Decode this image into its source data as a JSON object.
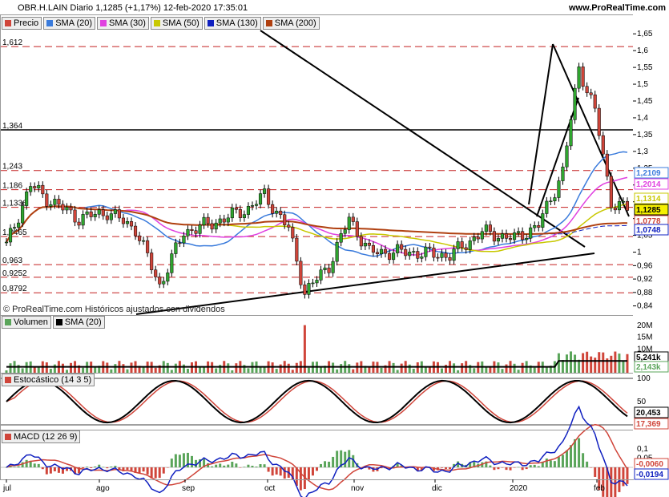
{
  "header": {
    "title": "OBR.H.LAIN Diario 1,1285 (+1,17%) 12-feb-2020 17:35:01",
    "site": "www.ProRealTime.com"
  },
  "price_legend": [
    {
      "label": "Precio",
      "color": "#d0453a"
    },
    {
      "label": "SMA (20)",
      "color": "#3a7bdc"
    },
    {
      "label": "SMA (30)",
      "color": "#e040e0"
    },
    {
      "label": "SMA (50)",
      "color": "#c8c800"
    },
    {
      "label": "SMA (130)",
      "color": "#1020c0"
    },
    {
      "label": "SMA (200)",
      "color": "#b04010"
    }
  ],
  "volume_legend": [
    {
      "label": "Volumen",
      "color": "#5aa55a"
    },
    {
      "label": "SMA (20)",
      "color": "#000000"
    }
  ],
  "stoch_legend": [
    {
      "label": "Estocástico (14 3 5)",
      "color": "#d0453a"
    }
  ],
  "macd_legend": [
    {
      "label": "MACD (12 26 9)",
      "color": "#d0453a"
    }
  ],
  "watermark": "© ProRealTime.com  Históricos ajustados con dividendos",
  "chart_data": {
    "type": "candlestick",
    "x_labels": [
      "jul",
      "ago",
      "sep",
      "oct",
      "nov",
      "dic",
      "2020",
      "feb"
    ],
    "price_axis": [
      "1,65",
      "1,6",
      "1,55",
      "1,5",
      "1,45",
      "1,4",
      "1,35",
      "1,3",
      "1,25",
      "1,2",
      "1,15",
      "1,1",
      "1,05",
      "1",
      "0,96",
      "0,92",
      "0,88",
      "0,84"
    ],
    "price_range": [
      0.82,
      1.66
    ],
    "horizontal_levels": [
      {
        "label": "1,612",
        "value": 1.612
      },
      {
        "label": "1,364",
        "value": 1.364
      },
      {
        "label": "1,243",
        "value": 1.243
      },
      {
        "label": "1,186",
        "value": 1.186
      },
      {
        "label": "1,1336",
        "value": 1.1336
      },
      {
        "label": "1,0465",
        "value": 1.0465
      },
      {
        "label": "0,963",
        "value": 0.963
      },
      {
        "label": "0,9252",
        "value": 0.9252
      },
      {
        "label": "0,8792",
        "value": 0.8792
      }
    ],
    "right_badges": [
      {
        "label": "1,2109",
        "color": "#3a7bdc"
      },
      {
        "label": "1,2014",
        "color": "#e040e0"
      },
      {
        "label": "1,1314",
        "color": "#c8c800"
      },
      {
        "label": "1,1285",
        "color": "#000000"
      },
      {
        "label": "1,0778",
        "color": "#d0453a"
      },
      {
        "label": "1,0748",
        "color": "#1020c0"
      }
    ],
    "last_price": 1.1285,
    "volume_axis": [
      "20M",
      "15M",
      "10M",
      "5M"
    ],
    "volume_badges": [
      {
        "label": "5,241k",
        "color": "#000000"
      },
      {
        "label": "2,143k",
        "color": "#5aa55a"
      }
    ],
    "stoch_axis": [
      "100",
      "50",
      "0"
    ],
    "stoch_badges": [
      {
        "label": "20,453",
        "color": "#000000"
      },
      {
        "label": "17,369",
        "color": "#d0453a"
      }
    ],
    "macd_axis": [
      "0,1",
      "0,05",
      "0",
      "-0,05"
    ],
    "macd_badges": [
      {
        "label": "-0,0060",
        "color": "#d0453a"
      },
      {
        "label": "-0,0194",
        "color": "#1020c0"
      }
    ]
  }
}
